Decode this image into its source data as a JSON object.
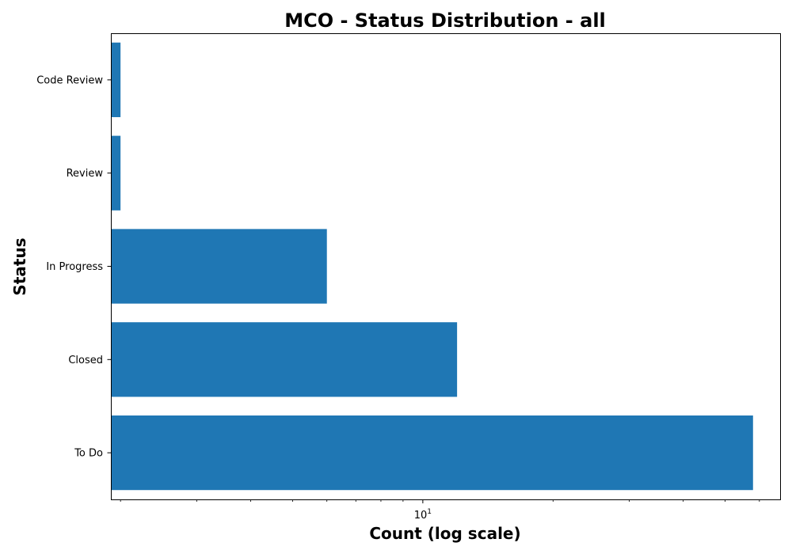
{
  "chart_data": {
    "type": "bar",
    "orientation": "horizontal",
    "title": "MCO - Status Distribution - all",
    "xlabel": "Count (log scale)",
    "ylabel": "Status",
    "xscale": "log",
    "xlim": [
      1.9,
      67
    ],
    "x_major_ticks": [
      {
        "value": 10,
        "base": "10",
        "exponent": "1"
      }
    ],
    "x_minor_ticks": [
      2,
      3,
      4,
      5,
      6,
      7,
      8,
      9,
      20,
      30,
      40,
      50,
      60
    ],
    "categories": [
      "To Do",
      "Closed",
      "In Progress",
      "Review",
      "Code Review"
    ],
    "values": [
      58,
      12,
      6,
      2,
      2
    ],
    "bar_color": "#1f77b4",
    "grid": false,
    "legend": "none"
  }
}
